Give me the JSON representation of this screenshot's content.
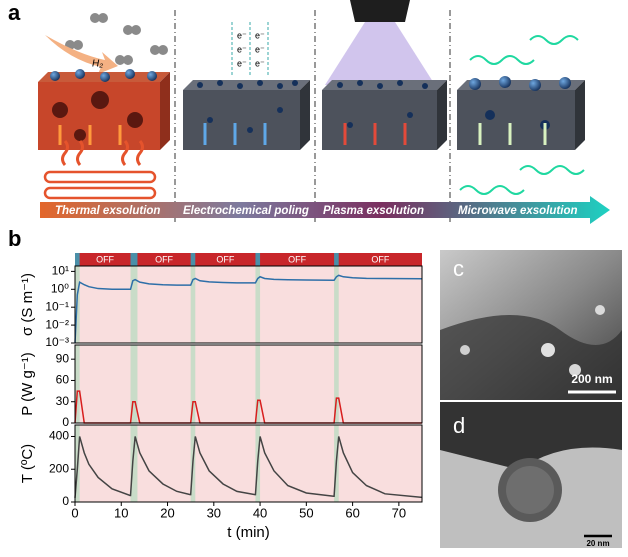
{
  "panel_a": {
    "label": "a",
    "gas_label": "H₂",
    "electron_label": "e⁻",
    "stages": [
      "Thermal exsolution",
      "Electrochemical poling",
      "Plasma exsolution",
      "Microwave exsolution"
    ]
  },
  "panel_b": {
    "label": "b",
    "off_label": "OFF",
    "on_periods": [
      [
        0,
        1
      ],
      [
        12,
        13.5
      ],
      [
        25,
        26
      ],
      [
        39,
        40
      ],
      [
        56,
        57
      ]
    ]
  },
  "chart_data": [
    {
      "type": "line",
      "ylabel": "σ (S m⁻¹)",
      "log_scale": true,
      "x": [
        0,
        0.5,
        1,
        2,
        3,
        5,
        8,
        11.9,
        12,
        12.5,
        13,
        14,
        16,
        19,
        22,
        24.9,
        25,
        25.5,
        26,
        27,
        29,
        32,
        35,
        38.9,
        39,
        39.5,
        40,
        41,
        43,
        46,
        50,
        55.9,
        56,
        56.5,
        57,
        58,
        60,
        63,
        67,
        75
      ],
      "series": [
        {
          "name": "σ",
          "color": "#2e6fa8",
          "values": [
            0.001,
            0.5,
            2.5,
            1.8,
            1.4,
            1.1,
            1.0,
            1.0,
            1.0,
            3,
            3.5,
            2.5,
            2.0,
            1.8,
            1.7,
            1.7,
            1.7,
            3.5,
            4,
            3,
            2.6,
            2.4,
            2.3,
            2.3,
            2.3,
            4,
            5,
            4,
            3.6,
            3.4,
            3.3,
            3.2,
            3.2,
            5,
            6,
            5,
            4.4,
            4.1,
            4,
            3.9
          ]
        }
      ],
      "xlim": [
        0,
        75
      ],
      "ylim": [
        0.001,
        20
      ],
      "yticks": [
        {
          "value": 10,
          "label": "10¹"
        },
        {
          "value": 1,
          "label": "10⁰"
        },
        {
          "value": 0.1,
          "label": "10⁻¹"
        },
        {
          "value": 0.01,
          "label": "10⁻²"
        },
        {
          "value": 0.001,
          "label": "10⁻³"
        }
      ]
    },
    {
      "type": "line",
      "ylabel": "P (W g⁻¹)",
      "x": [
        0,
        0.5,
        1,
        2,
        3,
        5,
        8,
        11.9,
        12,
        12.5,
        13,
        14,
        16,
        19,
        22,
        24.9,
        25,
        25.5,
        26,
        27,
        29,
        32,
        35,
        38.9,
        39,
        39.5,
        40,
        41,
        43,
        46,
        50,
        55.9,
        56,
        56.5,
        57,
        58,
        60,
        63,
        67,
        75
      ],
      "series": [
        {
          "name": "P",
          "color": "#d81e1e",
          "values": [
            0,
            45,
            45,
            0,
            0,
            0,
            0,
            0,
            0,
            30,
            30,
            0,
            0,
            0,
            0,
            0,
            0,
            30,
            30,
            0,
            0,
            0,
            0,
            0,
            0,
            32,
            32,
            0,
            0,
            0,
            0,
            0,
            0,
            35,
            35,
            0,
            0,
            0,
            0,
            0
          ]
        }
      ],
      "xlim": [
        0,
        75
      ],
      "ylim": [
        0,
        110
      ],
      "yticks": [
        0,
        30,
        60,
        90
      ]
    },
    {
      "type": "line",
      "ylabel": "T (ºC)",
      "xlabel": "t (min)",
      "x": [
        0,
        0.5,
        1,
        2,
        3,
        5,
        8,
        11.9,
        12,
        12.5,
        13,
        14,
        16,
        19,
        22,
        24.9,
        25,
        25.5,
        26,
        27,
        29,
        32,
        35,
        38.9,
        39,
        39.5,
        40,
        41,
        43,
        46,
        50,
        55.9,
        56,
        56.5,
        57,
        58,
        60,
        63,
        67,
        75
      ],
      "series": [
        {
          "name": "T",
          "color": "#444444",
          "values": [
            25,
            200,
            400,
            300,
            230,
            150,
            80,
            40,
            40,
            250,
            400,
            300,
            190,
            110,
            65,
            45,
            45,
            250,
            400,
            300,
            190,
            110,
            65,
            45,
            45,
            250,
            400,
            300,
            190,
            100,
            55,
            35,
            35,
            250,
            400,
            300,
            180,
            100,
            50,
            28
          ]
        }
      ],
      "xlim": [
        0,
        75
      ],
      "ylim": [
        0,
        470
      ],
      "yticks": [
        0,
        200,
        400
      ],
      "xticks": [
        0,
        10,
        20,
        30,
        40,
        50,
        60,
        70
      ]
    }
  ],
  "panel_c": {
    "label": "c",
    "scale_bar": "200 nm"
  },
  "panel_d": {
    "label": "d",
    "scale_bar": "20 nm"
  }
}
